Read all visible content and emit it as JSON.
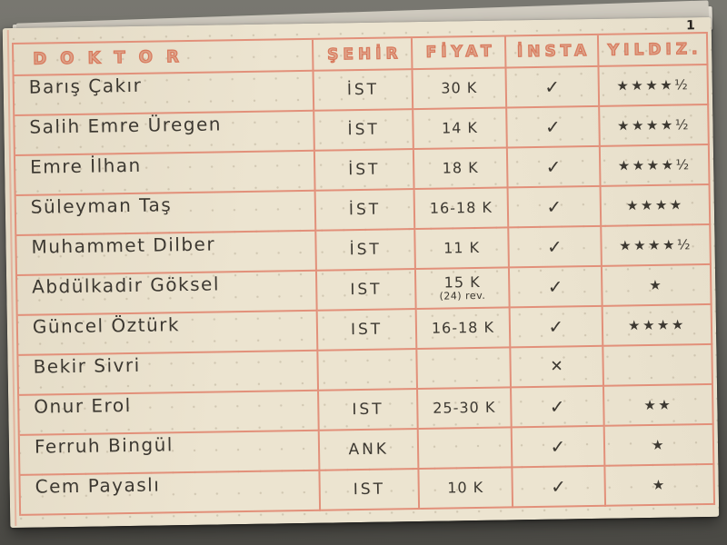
{
  "page": {
    "number": "1"
  },
  "table": {
    "headers": [
      "DOKTOR",
      "ŞEHİR",
      "FİYAT",
      "İNSTA",
      "YILDIZ."
    ],
    "rows": [
      {
        "doktor": "Barış Çakır",
        "sehir": "İST",
        "fiyat": "30 K",
        "fiyat_note": "",
        "insta": "check",
        "yildiz": "★★★★½"
      },
      {
        "doktor": "Salih Emre Üregen",
        "sehir": "İST",
        "fiyat": "14 K",
        "fiyat_note": "",
        "insta": "check",
        "yildiz": "★★★★½"
      },
      {
        "doktor": "Emre İlhan",
        "sehir": "İST",
        "fiyat": "18 K",
        "fiyat_note": "",
        "insta": "check",
        "yildiz": "★★★★½"
      },
      {
        "doktor": "Süleyman Taş",
        "sehir": "İST",
        "fiyat": "16-18 K",
        "fiyat_note": "",
        "insta": "check",
        "yildiz": "★★★★"
      },
      {
        "doktor": "Muhammet Dilber",
        "sehir": "İST",
        "fiyat": "11 K",
        "fiyat_note": "",
        "insta": "check",
        "yildiz": "★★★★½"
      },
      {
        "doktor": "Abdülkadir Göksel",
        "sehir": "IST",
        "fiyat": "15 K",
        "fiyat_note": "(24) rev.",
        "insta": "check",
        "yildiz": "★"
      },
      {
        "doktor": "Güncel Öztürk",
        "sehir": "IST",
        "fiyat": "16-18 K",
        "fiyat_note": "",
        "insta": "check",
        "yildiz": "★★★★"
      },
      {
        "doktor": "Bekir Sivri",
        "sehir": "",
        "fiyat": "",
        "fiyat_note": "",
        "insta": "cross",
        "yildiz": ""
      },
      {
        "doktor": "Onur Erol",
        "sehir": "IST",
        "fiyat": "25-30 K",
        "fiyat_note": "",
        "insta": "check",
        "yildiz": "★★"
      },
      {
        "doktor": "Ferruh Bingül",
        "sehir": "ANK",
        "fiyat": "",
        "fiyat_note": "",
        "insta": "check",
        "yildiz": "★"
      },
      {
        "doktor": "Cem Payaslı",
        "sehir": "IST",
        "fiyat": "10 K",
        "fiyat_note": "",
        "insta": "check",
        "yildiz": "★"
      }
    ]
  },
  "icons": {
    "check": "✓",
    "cross": "✕"
  },
  "colors": {
    "paper": "#ece4d0",
    "line": "#e2907a",
    "ink": "#3c3831",
    "header_ink": "#d8795c",
    "bg_top": "#787770",
    "bg_bottom": "#4a4944"
  }
}
